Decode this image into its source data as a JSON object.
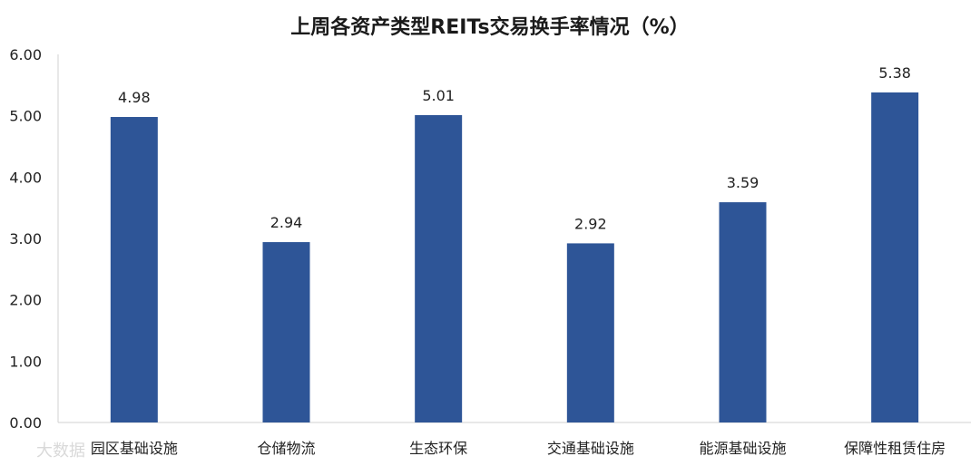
{
  "chart_data": {
    "type": "bar",
    "title": "上周各资产类型REITs交易换手率情况（%）",
    "categories": [
      "园区基础设施",
      "仓储物流",
      "生态环保",
      "交通基础设施",
      "能源基础设施",
      "保障性租赁住房"
    ],
    "values": [
      4.98,
      2.94,
      5.01,
      2.92,
      3.59,
      5.38
    ],
    "data_labels": [
      "4.98",
      "2.94",
      "5.01",
      "2.92",
      "3.59",
      "5.38"
    ],
    "y_ticks": [
      "0.00",
      "1.00",
      "2.00",
      "3.00",
      "4.00",
      "5.00",
      "6.00"
    ],
    "ylim": [
      0,
      6
    ],
    "grid": false,
    "legend": "none",
    "bar_color": "#2e5597"
  },
  "watermark": "大数据"
}
